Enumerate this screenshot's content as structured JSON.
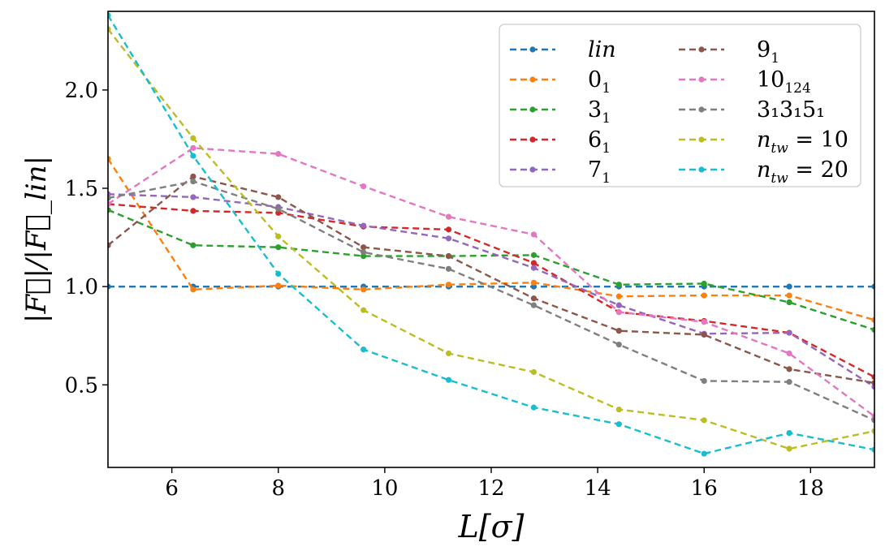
{
  "chart_data": {
    "type": "line",
    "title": "",
    "xlabel": "L[σ]",
    "ylabel": "|F⃗|/|F⃗_lin|",
    "xlim": [
      4.8,
      19.2
    ],
    "ylim": [
      0.08,
      2.4
    ],
    "xticks": [
      6,
      8,
      10,
      12,
      14,
      16,
      18
    ],
    "xtick_labels": [
      "6",
      "8",
      "10",
      "12",
      "14",
      "16",
      "18"
    ],
    "yticks": [
      0.5,
      1.0,
      1.5,
      2.0
    ],
    "ytick_labels": [
      "0.5",
      "1.0",
      "1.5",
      "2.0"
    ],
    "grid": false,
    "legend_position": "top-right",
    "x": [
      4.8,
      6.4,
      8.0,
      9.6,
      11.2,
      12.8,
      14.4,
      16.0,
      17.6,
      19.2
    ],
    "series": [
      {
        "name": "lin",
        "label_main": "lin",
        "label_sub": "",
        "color": "#1f77b4",
        "values": [
          1.0,
          1.0,
          1.0,
          1.0,
          1.0,
          1.0,
          1.0,
          1.0,
          1.0,
          1.0
        ]
      },
      {
        "name": "0_1",
        "label_main": "0",
        "label_sub": "1",
        "color": "#ff7f0e",
        "values": [
          1.65,
          0.985,
          1.005,
          0.985,
          1.01,
          1.02,
          0.95,
          0.955,
          0.955,
          0.83
        ]
      },
      {
        "name": "3_1",
        "label_main": "3",
        "label_sub": "1",
        "color": "#2ca02c",
        "values": [
          1.39,
          1.21,
          1.2,
          1.155,
          1.155,
          1.16,
          1.01,
          1.015,
          0.92,
          0.78
        ]
      },
      {
        "name": "6_1",
        "label_main": "6",
        "label_sub": "1",
        "color": "#d62728",
        "values": [
          1.42,
          1.385,
          1.375,
          1.305,
          1.29,
          1.12,
          0.87,
          0.825,
          0.765,
          0.54
        ]
      },
      {
        "name": "7_1",
        "label_main": "7",
        "label_sub": "1",
        "color": "#9467bd",
        "values": [
          1.47,
          1.455,
          1.405,
          1.31,
          1.245,
          1.095,
          0.905,
          0.76,
          0.765,
          0.49
        ]
      },
      {
        "name": "9_1",
        "label_main": "9",
        "label_sub": "1",
        "color": "#8c564b",
        "values": [
          1.21,
          1.56,
          1.455,
          1.2,
          1.155,
          0.94,
          0.775,
          0.755,
          0.58,
          0.51
        ]
      },
      {
        "name": "10_124",
        "label_main": "10",
        "label_sub": "124",
        "color": "#e377c2",
        "values": [
          1.42,
          1.705,
          1.675,
          1.51,
          1.355,
          1.265,
          0.87,
          0.82,
          0.66,
          0.34
        ]
      },
      {
        "name": "3_1 3_1 5_1",
        "label_main": "3₁3₁5₁",
        "label_sub": "",
        "color": "#7f7f7f",
        "values": [
          1.45,
          1.535,
          1.395,
          1.175,
          1.09,
          0.905,
          0.705,
          0.52,
          0.515,
          0.32
        ]
      },
      {
        "name": "n_tw = 10",
        "label_main": "n",
        "label_sub": "tw",
        "label_suffix": " = 10",
        "color": "#bcbd22",
        "values": [
          2.31,
          1.755,
          1.255,
          0.88,
          0.66,
          0.565,
          0.375,
          0.32,
          0.175,
          0.265
        ]
      },
      {
        "name": "n_tw = 20",
        "label_main": "n",
        "label_sub": "tw",
        "label_suffix": " = 20",
        "color": "#17becf",
        "values": [
          2.38,
          1.665,
          1.065,
          0.68,
          0.525,
          0.385,
          0.3,
          0.15,
          0.255,
          0.17
        ]
      }
    ]
  }
}
